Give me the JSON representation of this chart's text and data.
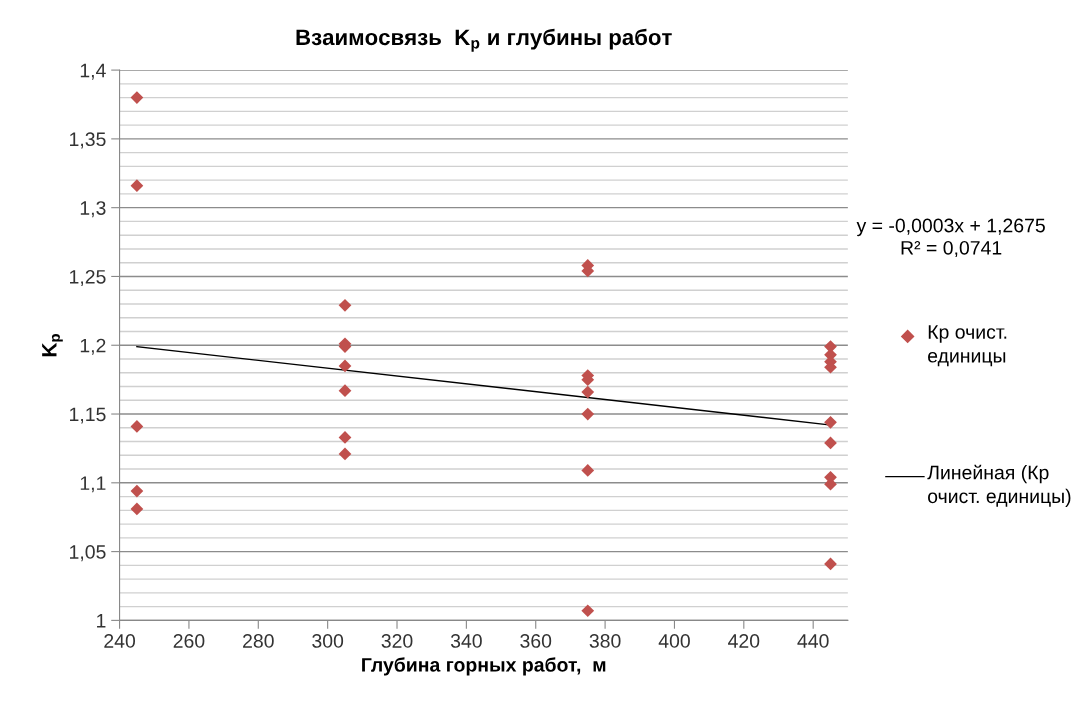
{
  "chart_data": {
    "type": "scatter",
    "title": "Взаимосвязь  K$_{р}$ и глубины работ",
    "xlabel": "Глубина горных работ,  м",
    "ylabel": "K$_{р}$",
    "xlim": [
      240,
      450
    ],
    "xticks": [
      240,
      260,
      280,
      300,
      320,
      340,
      360,
      380,
      400,
      420,
      440
    ],
    "ylim": [
      1,
      1.4
    ],
    "yticks": [
      {
        "value": 1,
        "label": "1"
      },
      {
        "value": 1.01,
        "label": null
      },
      {
        "value": 1.02,
        "label": null
      },
      {
        "value": 1.03,
        "label": null
      },
      {
        "value": 1.04,
        "label": null
      },
      {
        "value": 1.05,
        "label": "1,05"
      },
      {
        "value": 1.06,
        "label": null
      },
      {
        "value": 1.07,
        "label": null
      },
      {
        "value": 1.08,
        "label": null
      },
      {
        "value": 1.09,
        "label": null
      },
      {
        "value": 1.1,
        "label": "1,1"
      },
      {
        "value": 1.11,
        "label": null
      },
      {
        "value": 1.12,
        "label": null
      },
      {
        "value": 1.13,
        "label": null
      },
      {
        "value": 1.14,
        "label": null
      },
      {
        "value": 1.15,
        "label": "1,15"
      },
      {
        "value": 1.16,
        "label": null
      },
      {
        "value": 1.17,
        "label": null
      },
      {
        "value": 1.18,
        "label": null
      },
      {
        "value": 1.19,
        "label": null
      },
      {
        "value": 1.2,
        "label": "1,2"
      },
      {
        "value": 1.21,
        "label": null
      },
      {
        "value": 1.22,
        "label": null
      },
      {
        "value": 1.23,
        "label": null
      },
      {
        "value": 1.24,
        "label": null
      },
      {
        "value": 1.25,
        "label": "1,25"
      },
      {
        "value": 1.26,
        "label": null
      },
      {
        "value": 1.27,
        "label": null
      },
      {
        "value": 1.28,
        "label": null
      },
      {
        "value": 1.29,
        "label": null
      },
      {
        "value": 1.3,
        "label": "1,3"
      },
      {
        "value": 1.31,
        "label": null
      },
      {
        "value": 1.32,
        "label": null
      },
      {
        "value": 1.33,
        "label": null
      },
      {
        "value": 1.34,
        "label": null
      },
      {
        "value": 1.35,
        "label": "1,35"
      },
      {
        "value": 1.36,
        "label": null
      },
      {
        "value": 1.37,
        "label": null
      },
      {
        "value": 1.38,
        "label": null
      },
      {
        "value": 1.39,
        "label": null
      },
      {
        "value": 1.4,
        "label": "1,4"
      }
    ],
    "grid": "y",
    "legend": "right",
    "series": [
      {
        "name": "Кр очист. единицы",
        "color": "#c0504d",
        "marker": "diamond",
        "x": [
          245,
          245,
          245,
          245,
          245,
          305,
          305,
          305,
          305,
          305,
          305,
          305,
          375,
          375,
          375,
          375,
          375,
          375,
          375,
          375,
          445,
          445,
          445,
          445,
          445,
          445,
          445,
          445,
          445
        ],
        "values": [
          1.38,
          1.316,
          1.141,
          1.094,
          1.081,
          1.229,
          1.201,
          1.199,
          1.185,
          1.167,
          1.133,
          1.121,
          1.258,
          1.254,
          1.178,
          1.175,
          1.166,
          1.15,
          1.109,
          1.007,
          1.199,
          1.193,
          1.188,
          1.184,
          1.144,
          1.129,
          1.104,
          1.099,
          1.041
        ]
      },
      {
        "name": "Линейная (Кр очист. единицы)",
        "type": "line",
        "color": "#000000",
        "line_style": "solid",
        "x": [
          245,
          445
        ],
        "values": [
          1.199,
          1.142
        ]
      }
    ],
    "annotations": [
      "y = -0,0003x + 1,2675\nR² = 0,0741"
    ]
  }
}
